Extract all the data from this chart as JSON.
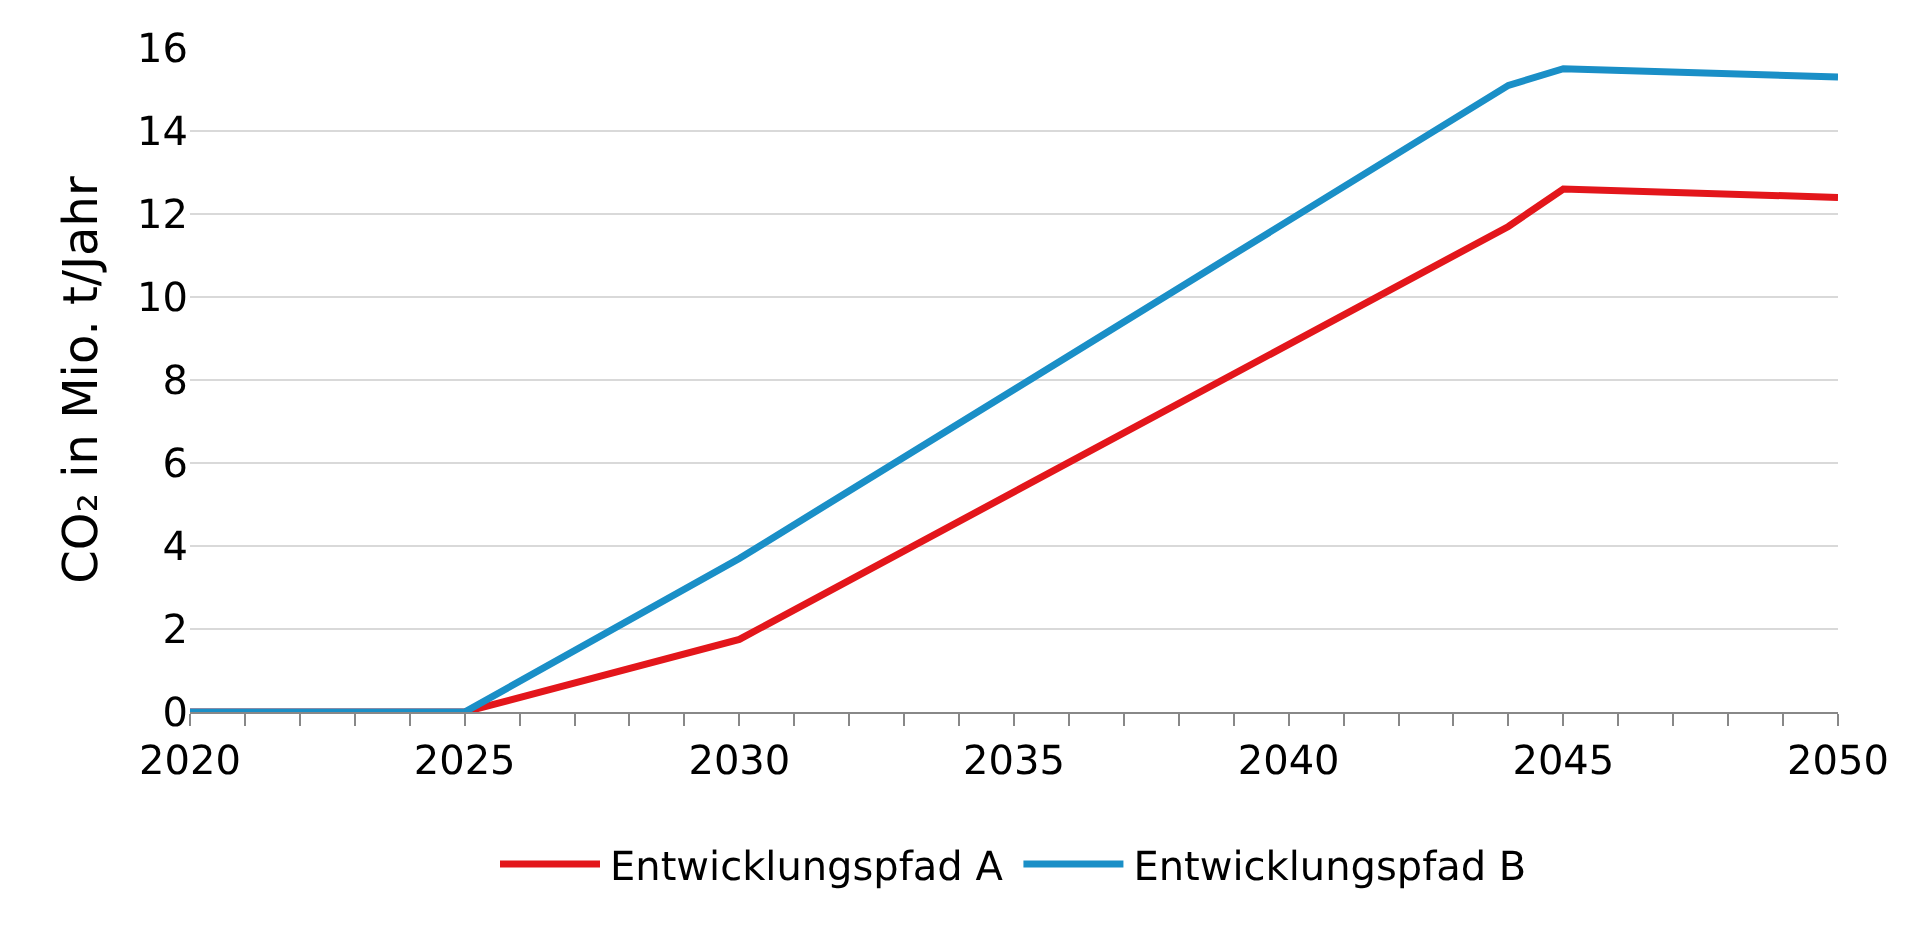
{
  "chart_data": {
    "type": "line",
    "ylabel": "CO₂ in Mio. t/Jahr",
    "x": [
      2020,
      2025,
      2030,
      2044,
      2045,
      2050
    ],
    "series": [
      {
        "name": "Entwicklungspfad A",
        "color": "#e3161b",
        "values": [
          0,
          0,
          1.75,
          11.7,
          12.6,
          12.4
        ]
      },
      {
        "name": "Entwicklungspfad B",
        "color": "#1a8fc7",
        "values": [
          0,
          0,
          3.7,
          15.1,
          15.5,
          15.3
        ]
      }
    ],
    "xlim": [
      2020,
      2050
    ],
    "xticks": [
      2020,
      {
        "value": 2021,
        "label": null
      },
      {
        "value": 2022,
        "label": null
      },
      {
        "value": 2023,
        "label": null
      },
      {
        "value": 2024,
        "label": null
      },
      2025,
      {
        "value": 2026,
        "label": null
      },
      {
        "value": 2027,
        "label": null
      },
      {
        "value": 2028,
        "label": null
      },
      {
        "value": 2029,
        "label": null
      },
      2030,
      {
        "value": 2031,
        "label": null
      },
      {
        "value": 2032,
        "label": null
      },
      {
        "value": 2033,
        "label": null
      },
      {
        "value": 2034,
        "label": null
      },
      2035,
      {
        "value": 2036,
        "label": null
      },
      {
        "value": 2037,
        "label": null
      },
      {
        "value": 2038,
        "label": null
      },
      {
        "value": 2039,
        "label": null
      },
      2040,
      {
        "value": 2041,
        "label": null
      },
      {
        "value": 2042,
        "label": null
      },
      {
        "value": 2043,
        "label": null
      },
      {
        "value": 2044,
        "label": null
      },
      2045,
      {
        "value": 2046,
        "label": null
      },
      {
        "value": 2047,
        "label": null
      },
      {
        "value": 2048,
        "label": null
      },
      {
        "value": 2049,
        "label": null
      },
      2050
    ],
    "ylim": [
      0,
      16
    ],
    "yticks": [
      0,
      2,
      4,
      6,
      8,
      10,
      12,
      14,
      16
    ],
    "grid": "y",
    "legend": "bottom",
    "marker": "none",
    "line_style": "solid"
  }
}
